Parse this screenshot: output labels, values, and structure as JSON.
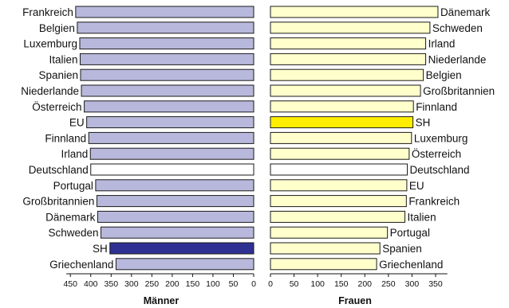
{
  "chart_data": [
    {
      "type": "bar",
      "orientation": "horizontal",
      "xlabel": "Männer",
      "xlim": [
        0,
        460
      ],
      "x_direction": "reversed",
      "ticks": [
        450,
        400,
        350,
        300,
        250,
        200,
        150,
        100,
        50,
        0
      ],
      "categories": [
        "Frankreich",
        "Belgien",
        "Luxemburg",
        "Italien",
        "Spanien",
        "Niederlande",
        "Österreich",
        "EU",
        "Finnland",
        "Irland",
        "Deutschland",
        "Portugal",
        "Großbritannien",
        "Dänemark",
        "Schweden",
        "SH",
        "Griechenland"
      ],
      "values": [
        437,
        433,
        427,
        426,
        425,
        423,
        416,
        410,
        405,
        401,
        400,
        388,
        385,
        383,
        375,
        353,
        338
      ],
      "colors": {
        "default": "#b8b8dc",
        "highlight_sh": "#2e3192",
        "highlight_deutschland": "#ffffff"
      }
    },
    {
      "type": "bar",
      "orientation": "horizontal",
      "xlabel": "Frauen",
      "xlim": [
        0,
        375
      ],
      "ticks": [
        0,
        50,
        100,
        150,
        200,
        250,
        300,
        350
      ],
      "categories": [
        "Dänemark",
        "Schweden",
        "Irland",
        "Niederlande",
        "Belgien",
        "Großbritannien",
        "Finnland",
        "SH",
        "Luxemburg",
        "Österreich",
        "Deutschland",
        "EU",
        "Frankreich",
        "Italien",
        "Portugal",
        "Spanien",
        "Griechenland"
      ],
      "values": [
        355,
        338,
        329,
        329,
        324,
        318,
        303,
        302,
        299,
        294,
        290,
        289,
        288,
        285,
        248,
        232,
        225
      ],
      "colors": {
        "default": "#ffffcc",
        "highlight_sh": "#ffee00",
        "highlight_deutschland": "#ffffff"
      }
    }
  ]
}
